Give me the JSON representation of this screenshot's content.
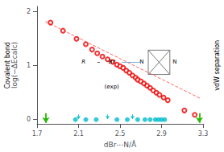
{
  "chart_data": {
    "type": "scatter",
    "xlabel": "dBr⋯N/Å",
    "ylabel": "log(−ΔEcalc)",
    "xlim": [
      1.7,
      3.3
    ],
    "ylim": [
      -0.08,
      2.1
    ],
    "xticks": [
      1.7,
      2.1,
      2.5,
      2.9,
      3.3
    ],
    "yticks": [
      0,
      1,
      2
    ],
    "grid": false,
    "series": [
      {
        "type": "scatter",
        "marker": "open circle",
        "color": "#EE0000",
        "x": [
          1.83,
          1.95,
          2.08,
          2.17,
          2.23,
          2.28,
          2.33,
          2.38,
          2.43,
          2.47,
          2.5,
          2.53,
          2.56,
          2.59,
          2.62,
          2.65,
          2.67,
          2.7,
          2.73,
          2.76,
          2.79,
          2.82,
          2.85,
          2.88,
          2.92,
          2.96,
          3.12,
          3.22
        ],
        "values": [
          1.8,
          1.65,
          1.5,
          1.4,
          1.3,
          1.23,
          1.17,
          1.12,
          1.07,
          1.02,
          0.99,
          0.96,
          0.91,
          0.87,
          0.82,
          0.78,
          0.74,
          0.71,
          0.67,
          0.63,
          0.59,
          0.54,
          0.5,
          0.46,
          0.41,
          0.36,
          0.17,
          0.09
        ]
      },
      {
        "type": "line",
        "line_style": "dashed",
        "color": "#FF6666",
        "x": [
          1.78,
          3.28
        ],
        "values": [
          1.8201,
          0.3876
        ]
      },
      {
        "type": "scatter",
        "marker": "circle",
        "color": "#00BBCC",
        "x": [
          2.07,
          2.17,
          2.27,
          2.47,
          2.57,
          2.67,
          2.74,
          2.79,
          2.84,
          2.87,
          2.9,
          2.93
        ],
        "values": [
          0,
          0,
          0,
          0,
          0,
          0,
          0,
          0,
          0,
          0,
          0,
          0
        ]
      },
      {
        "type": "arrow",
        "color": "#00BBCC",
        "x": [
          2.1,
          2.38,
          2.62
        ],
        "values": [
          0.1,
          0.1,
          0.1
        ],
        "y_end": [
          0.01,
          0.01,
          0.01
        ]
      },
      {
        "type": "arrow",
        "color": "#22BB00",
        "x": [
          1.785,
          3.265
        ],
        "values": [
          0.12,
          0.12
        ],
        "y_end": [
          -0.06,
          -0.06
        ]
      }
    ],
    "annotations": [
      "Covalent bond",
      "vdW separation",
      "R",
      "–",
      "Br",
      "N",
      "N",
      "(exp)"
    ]
  }
}
